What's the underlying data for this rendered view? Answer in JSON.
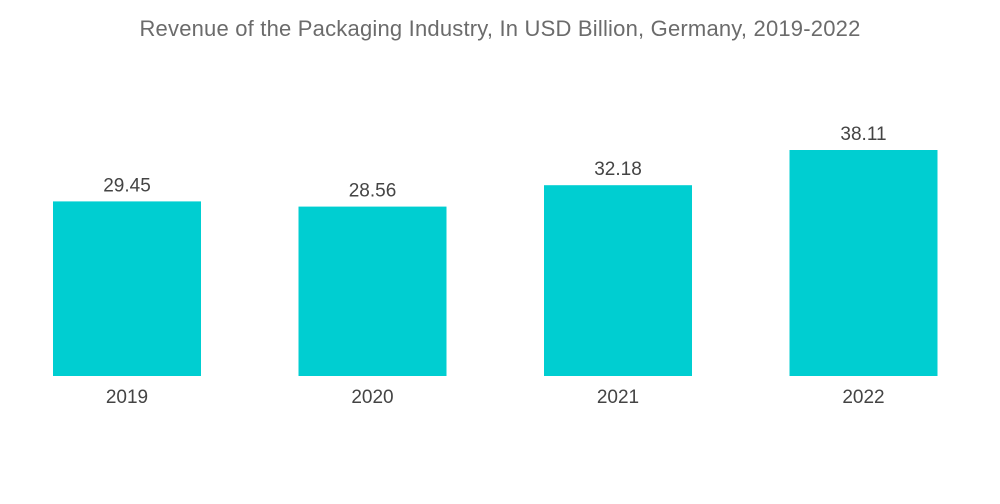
{
  "chart_data": {
    "type": "bar",
    "title": "Revenue of the Packaging Industry, In USD Billion, Germany, 2019-2022",
    "categories": [
      "2019",
      "2020",
      "2021",
      "2022"
    ],
    "values": [
      29.45,
      28.56,
      32.18,
      38.11
    ],
    "value_labels": [
      "29.45",
      "28.56",
      "32.18",
      "38.11"
    ],
    "xlabel": "",
    "ylabel": "",
    "ylim": [
      0,
      38.11
    ],
    "grid": false,
    "legend": "none",
    "bar_color": "#00CED1"
  }
}
